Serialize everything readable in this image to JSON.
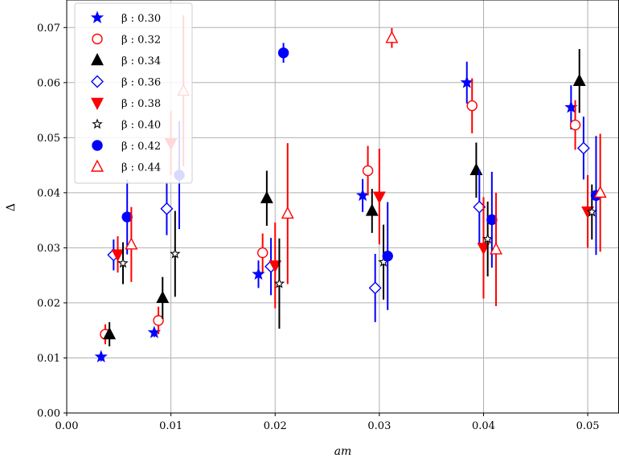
{
  "chart_data": {
    "type": "scatter",
    "title": "",
    "xlabel": "am",
    "ylabel": "Δ",
    "xlim": [
      0.0,
      0.053
    ],
    "ylim": [
      0.0,
      0.075
    ],
    "xticks": [
      0.0,
      0.01,
      0.02,
      0.03,
      0.04,
      0.05
    ],
    "xtick_labels": [
      "0.00",
      "0.01",
      "0.02",
      "0.03",
      "0.04",
      "0.05"
    ],
    "yticks": [
      0.0,
      0.01,
      0.02,
      0.03,
      0.04,
      0.05,
      0.06,
      0.07
    ],
    "ytick_labels": [
      "0.00",
      "0.01",
      "0.02",
      "0.03",
      "0.04",
      "0.05",
      "0.06",
      "0.07"
    ],
    "grid": true,
    "legend_position": "top-left",
    "series": [
      {
        "name": "β : 0.30",
        "color": "#0000ff",
        "marker": "star",
        "filled": true,
        "points": [
          {
            "x": 0.0033,
            "y": 0.0102,
            "err": 0.0008
          },
          {
            "x": 0.0084,
            "y": 0.0146,
            "err": 0.0008
          },
          {
            "x": 0.0184,
            "y": 0.0252,
            "err": 0.0025
          },
          {
            "x": 0.0284,
            "y": 0.0395,
            "err": 0.003
          },
          {
            "x": 0.0384,
            "y": 0.06,
            "err": 0.0038
          },
          {
            "x": 0.0484,
            "y": 0.0555,
            "err": 0.004
          }
        ]
      },
      {
        "name": "β : 0.32",
        "color": "#ff0000",
        "marker": "circle",
        "filled": false,
        "points": [
          {
            "x": 0.0037,
            "y": 0.0143,
            "err": 0.0018
          },
          {
            "x": 0.0088,
            "y": 0.0168,
            "err": 0.0025
          },
          {
            "x": 0.0188,
            "y": 0.0291,
            "err": 0.0035
          },
          {
            "x": 0.0289,
            "y": 0.044,
            "err": 0.0045
          },
          {
            "x": 0.0389,
            "y": 0.0558,
            "err": 0.005
          },
          {
            "x": 0.0488,
            "y": 0.0523,
            "err": 0.0045
          }
        ]
      },
      {
        "name": "β : 0.34",
        "color": "#000000",
        "marker": "triangle-up",
        "filled": true,
        "points": [
          {
            "x": 0.0041,
            "y": 0.0143,
            "err": 0.0022
          },
          {
            "x": 0.0092,
            "y": 0.0209,
            "err": 0.0038
          },
          {
            "x": 0.0192,
            "y": 0.039,
            "err": 0.005
          },
          {
            "x": 0.0293,
            "y": 0.0367,
            "err": 0.004
          },
          {
            "x": 0.0393,
            "y": 0.0441,
            "err": 0.005
          },
          {
            "x": 0.0492,
            "y": 0.0603,
            "err": 0.0058
          }
        ]
      },
      {
        "name": "β : 0.36",
        "color": "#0000ff",
        "marker": "diamond",
        "filled": false,
        "points": [
          {
            "x": 0.0045,
            "y": 0.0287,
            "err": 0.0028
          },
          {
            "x": 0.0096,
            "y": 0.0371,
            "err": 0.0048
          },
          {
            "x": 0.0196,
            "y": 0.0266,
            "err": 0.0052
          },
          {
            "x": 0.0296,
            "y": 0.0227,
            "err": 0.0062
          },
          {
            "x": 0.0396,
            "y": 0.0374,
            "err": 0.0068
          },
          {
            "x": 0.0496,
            "y": 0.0481,
            "err": 0.0057
          }
        ]
      },
      {
        "name": "β : 0.38",
        "color": "#ff0000",
        "marker": "triangle-down",
        "filled": true,
        "points": [
          {
            "x": 0.0049,
            "y": 0.0288,
            "err": 0.0033
          },
          {
            "x": 0.01,
            "y": 0.049,
            "err": 0.0058
          },
          {
            "x": 0.02,
            "y": 0.0268,
            "err": 0.0078
          },
          {
            "x": 0.03,
            "y": 0.0393,
            "err": 0.0087
          },
          {
            "x": 0.04,
            "y": 0.03,
            "err": 0.0092
          },
          {
            "x": 0.05,
            "y": 0.0366,
            "err": 0.0066
          }
        ]
      },
      {
        "name": "β : 0.40",
        "color": "#000000",
        "marker": "star",
        "filled": false,
        "points": [
          {
            "x": 0.0054,
            "y": 0.0272,
            "err": 0.0038
          },
          {
            "x": 0.0104,
            "y": 0.0289,
            "err": 0.0078
          },
          {
            "x": 0.0204,
            "y": 0.0235,
            "err": 0.0082
          },
          {
            "x": 0.0304,
            "y": 0.0274,
            "err": 0.0068
          },
          {
            "x": 0.0404,
            "y": 0.0316,
            "err": 0.0068
          },
          {
            "x": 0.0504,
            "y": 0.0365,
            "err": 0.005
          }
        ]
      },
      {
        "name": "β : 0.42",
        "color": "#0000ff",
        "marker": "circle",
        "filled": true,
        "points": [
          {
            "x": 0.0058,
            "y": 0.0356,
            "err": 0.0068
          },
          {
            "x": 0.0108,
            "y": 0.0432,
            "err": 0.0098
          },
          {
            "x": 0.0208,
            "y": 0.0654,
            "err": 0.0018
          },
          {
            "x": 0.0308,
            "y": 0.0285,
            "err": 0.0098
          },
          {
            "x": 0.0408,
            "y": 0.0351,
            "err": 0.0087
          },
          {
            "x": 0.0508,
            "y": 0.0395,
            "err": 0.0108
          }
        ]
      },
      {
        "name": "β : 0.44",
        "color": "#ff0000",
        "marker": "triangle-up",
        "filled": false,
        "points": [
          {
            "x": 0.0062,
            "y": 0.0306,
            "err": 0.0068
          },
          {
            "x": 0.0112,
            "y": 0.0585,
            "err": 0.0137
          },
          {
            "x": 0.0212,
            "y": 0.0362,
            "err": 0.0128
          },
          {
            "x": 0.0312,
            "y": 0.0681,
            "err": 0.0018
          },
          {
            "x": 0.0412,
            "y": 0.0297,
            "err": 0.0103
          },
          {
            "x": 0.0512,
            "y": 0.04,
            "err": 0.0107
          }
        ]
      }
    ]
  }
}
